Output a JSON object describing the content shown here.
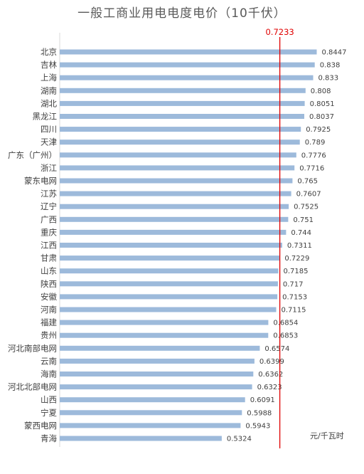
{
  "chart_data": {
    "type": "bar",
    "orientation": "horizontal",
    "title": "一般工商业用电电度电价（10千伏）",
    "unit": "元/千瓦时",
    "xlim": [
      0,
      0.9
    ],
    "grid": false,
    "bar_color": "#9dbadb",
    "reference_line": {
      "value": 0.7233,
      "label": "0.7233",
      "color": "#e00000"
    },
    "categories": [
      "北京",
      "吉林",
      "上海",
      "湖南",
      "湖北",
      "黑龙江",
      "四川",
      "天津",
      "广东（广州）",
      "浙江",
      "蒙东电网",
      "江苏",
      "辽宁",
      "广西",
      "重庆",
      "江西",
      "甘肃",
      "山东",
      "陕西",
      "安徽",
      "河南",
      "福建",
      "贵州",
      "河北南部电网",
      "云南",
      "海南",
      "河北北部电网",
      "山西",
      "宁夏",
      "蒙西电网",
      "青海"
    ],
    "values": [
      0.8447,
      0.838,
      0.833,
      0.808,
      0.8051,
      0.8037,
      0.7925,
      0.789,
      0.7776,
      0.7716,
      0.765,
      0.7607,
      0.7525,
      0.751,
      0.744,
      0.7311,
      0.7229,
      0.7185,
      0.717,
      0.7153,
      0.7115,
      0.6854,
      0.6853,
      0.6574,
      0.6399,
      0.6362,
      0.6323,
      0.6091,
      0.5988,
      0.5943,
      0.5324
    ],
    "value_labels": [
      "0.8447",
      "0.838",
      "0.833",
      "0.808",
      "0.8051",
      "0.8037",
      "0.7925",
      "0.789",
      "0.7776",
      "0.7716",
      "0.765",
      "0.7607",
      "0.7525",
      "0.751",
      "0.744",
      "0.7311",
      "0.7229",
      "0.7185",
      "0.717",
      "0.7153",
      "0.7115",
      "0.6854",
      "0.6853",
      "0.6574",
      "0.6399",
      "0.6362",
      "0.6323",
      "0.6091",
      "0.5988",
      "0.5943",
      "0.5324"
    ]
  }
}
